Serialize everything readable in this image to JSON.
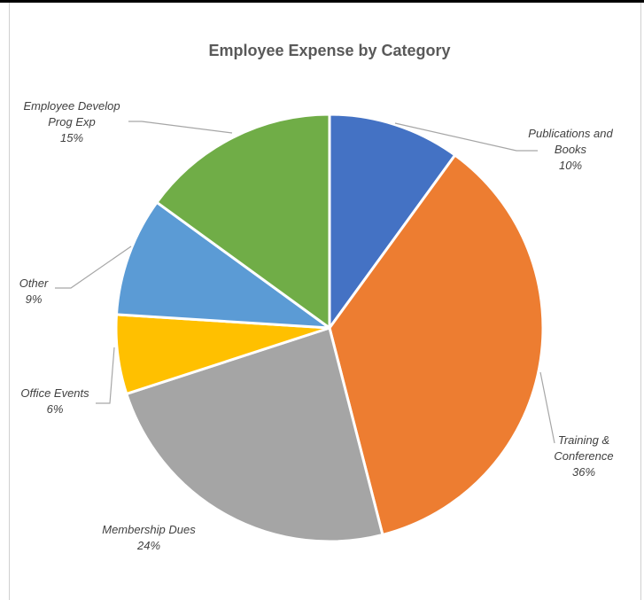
{
  "chart_data": {
    "type": "pie",
    "title": "Employee Expense by Category",
    "slices": [
      {
        "label_lines": [
          "Publications and",
          "Books"
        ],
        "percent_label": "10%",
        "value": 10,
        "color": "#4472C4"
      },
      {
        "label_lines": [
          "Training &",
          "Conference"
        ],
        "percent_label": "36%",
        "value": 36,
        "color": "#ED7D31"
      },
      {
        "label_lines": [
          "Membership Dues"
        ],
        "percent_label": "24%",
        "value": 24,
        "color": "#A5A5A5"
      },
      {
        "label_lines": [
          "Office Events"
        ],
        "percent_label": "6%",
        "value": 6,
        "color": "#FFC000"
      },
      {
        "label_lines": [
          "Other"
        ],
        "percent_label": "9%",
        "value": 9,
        "color": "#5B9BD5"
      },
      {
        "label_lines": [
          "Employee Develop",
          "Prog Exp"
        ],
        "percent_label": "15%",
        "value": 15,
        "color": "#70AD47"
      }
    ],
    "start_angle_deg": 0,
    "direction": "clockwise",
    "slice_border_color": "#FFFFFF",
    "leader_line_color": "#A6A6A6"
  }
}
